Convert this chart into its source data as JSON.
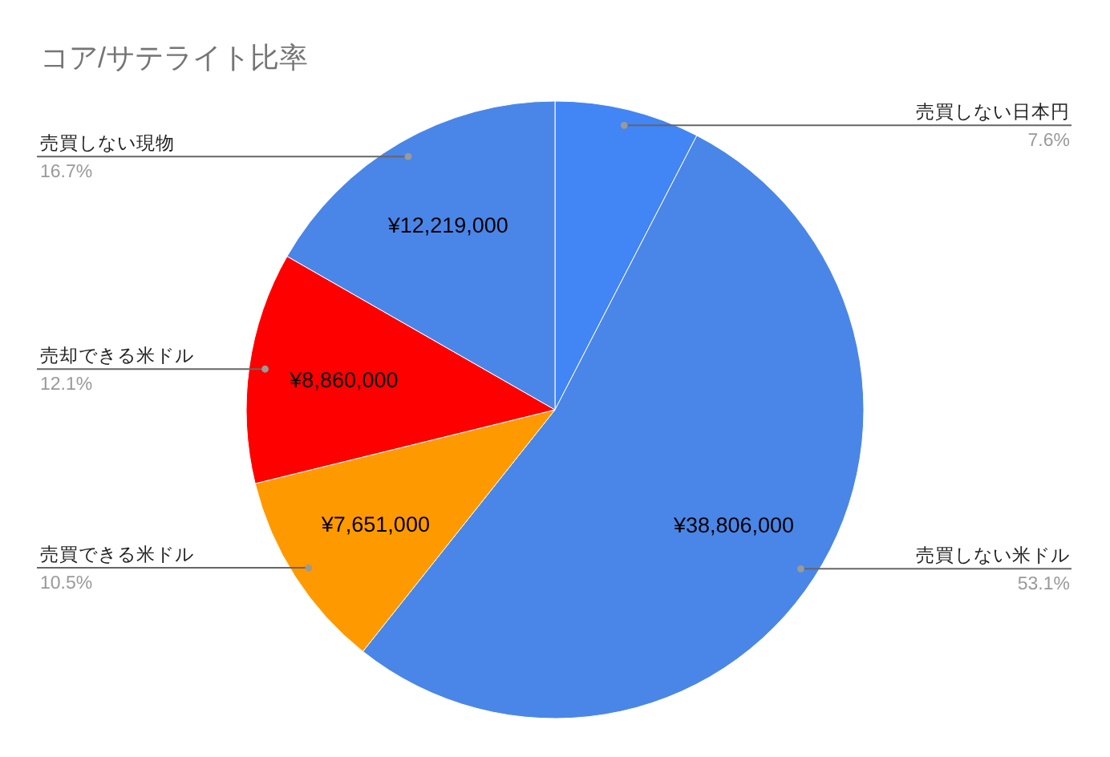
{
  "chart_data": {
    "type": "pie",
    "title": "コア/サテライト比率",
    "categories": [
      "売買しない日本円",
      "売買しない米ドル",
      "売買できる米ドル",
      "売却できる米ドル",
      "売買しない現物"
    ],
    "values": [
      5550000,
      38806000,
      7651000,
      8860000,
      12219000
    ],
    "colors": [
      "#4285f4",
      "#4a86e8",
      "#ff9900",
      "#ff0000",
      "#4a86e8"
    ],
    "value_labels": [
      null,
      "¥38,806,000",
      "¥7,651,000",
      "¥8,860,000",
      "¥12,219,000"
    ],
    "annotations": [
      "7.6%",
      "53.1%",
      "10.5%",
      "12.1%",
      "16.7%"
    ]
  }
}
